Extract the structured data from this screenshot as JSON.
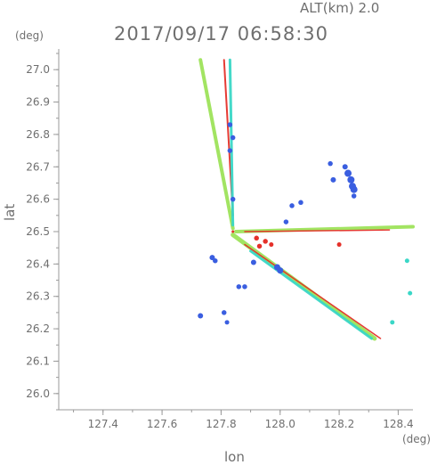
{
  "header": {
    "alt_label": "ALT(km) 2.0",
    "timestamp": "2017/09/17 06:58:30"
  },
  "colors": {
    "axis": "#9a9a9a",
    "text": "#6f6f6f",
    "blue": "#3a5ee0",
    "green": "#9ee35a",
    "cyan": "#3ad7c7",
    "red": "#e5312a",
    "yellow": "#e8ea3a",
    "teal": "#35c0d8"
  },
  "chart_data": {
    "type": "scatter",
    "title": "2017/09/17 06:58:30",
    "subtitle": "ALT(km) 2.0",
    "xlabel": "lon",
    "ylabel": "lat",
    "x_unit": "(deg)",
    "y_unit": "(deg)",
    "xlim": [
      127.25,
      128.45
    ],
    "ylim": [
      25.95,
      27.05
    ],
    "xticks": [
      127.4,
      127.6,
      127.8,
      128.0,
      128.2,
      128.4
    ],
    "yticks": [
      26.0,
      26.1,
      26.2,
      26.3,
      26.4,
      26.5,
      26.6,
      26.7,
      26.8,
      26.9,
      27.0
    ],
    "xtick_labels": [
      "127.4",
      "127.6",
      "127.8",
      "128.0",
      "128.2",
      "128.4"
    ],
    "ytick_labels": [
      "26.0",
      "26.1",
      "26.2",
      "26.3",
      "26.4",
      "26.5",
      "26.6",
      "26.7",
      "26.8",
      "26.9",
      "27.0"
    ],
    "grid": false,
    "radar_site": [
      127.84,
      26.5
    ],
    "beams": [
      {
        "color": "green",
        "from": [
          127.84,
          26.51
        ],
        "to": [
          127.73,
          27.03
        ],
        "width": 4
      },
      {
        "color": "red",
        "from": [
          127.84,
          26.55
        ],
        "to": [
          127.81,
          27.03
        ],
        "width": 2
      },
      {
        "color": "cyan",
        "from": [
          127.84,
          26.52
        ],
        "to": [
          127.83,
          27.03
        ],
        "width": 3
      },
      {
        "color": "green",
        "from": [
          127.85,
          26.5
        ],
        "to": [
          128.45,
          26.515
        ],
        "width": 4
      },
      {
        "color": "red",
        "from": [
          127.88,
          26.5
        ],
        "to": [
          128.37,
          26.505
        ],
        "width": 1.5
      },
      {
        "color": "green",
        "from": [
          127.84,
          26.49
        ],
        "to": [
          128.32,
          26.17
        ],
        "width": 5
      },
      {
        "color": "cyan",
        "from": [
          127.9,
          26.44
        ],
        "to": [
          128.31,
          26.17
        ],
        "width": 3
      },
      {
        "color": "red",
        "from": [
          127.88,
          26.46
        ],
        "to": [
          128.34,
          26.17
        ],
        "width": 1.5
      }
    ],
    "echoes": [
      {
        "color": "blue",
        "x": 128.23,
        "y": 26.68,
        "size": 1
      },
      {
        "color": "blue",
        "x": 128.24,
        "y": 26.66,
        "size": 1
      },
      {
        "color": "blue",
        "x": 128.245,
        "y": 26.64,
        "size": 1
      },
      {
        "color": "blue",
        "x": 128.25,
        "y": 26.63,
        "size": 1
      },
      {
        "color": "blue",
        "x": 128.22,
        "y": 26.7,
        "size": 0.6
      },
      {
        "color": "blue",
        "x": 128.18,
        "y": 26.66,
        "size": 0.6
      },
      {
        "color": "blue",
        "x": 128.17,
        "y": 26.71,
        "size": 0.5
      },
      {
        "color": "blue",
        "x": 128.25,
        "y": 26.61,
        "size": 0.5
      },
      {
        "color": "blue",
        "x": 128.07,
        "y": 26.59,
        "size": 0.5
      },
      {
        "color": "blue",
        "x": 128.04,
        "y": 26.58,
        "size": 0.5
      },
      {
        "color": "blue",
        "x": 128.02,
        "y": 26.53,
        "size": 0.5
      },
      {
        "color": "blue",
        "x": 127.83,
        "y": 26.83,
        "size": 0.5
      },
      {
        "color": "blue",
        "x": 127.84,
        "y": 26.79,
        "size": 0.5
      },
      {
        "color": "blue",
        "x": 127.83,
        "y": 26.75,
        "size": 0.5
      },
      {
        "color": "blue",
        "x": 127.84,
        "y": 26.6,
        "size": 0.5
      },
      {
        "color": "blue",
        "x": 127.77,
        "y": 26.42,
        "size": 0.6
      },
      {
        "color": "blue",
        "x": 127.78,
        "y": 26.41,
        "size": 0.5
      },
      {
        "color": "blue",
        "x": 127.91,
        "y": 26.405,
        "size": 0.6
      },
      {
        "color": "blue",
        "x": 127.99,
        "y": 26.39,
        "size": 0.8
      },
      {
        "color": "blue",
        "x": 128.0,
        "y": 26.38,
        "size": 0.8
      },
      {
        "color": "blue",
        "x": 127.86,
        "y": 26.33,
        "size": 0.5
      },
      {
        "color": "blue",
        "x": 127.88,
        "y": 26.33,
        "size": 0.5
      },
      {
        "color": "blue",
        "x": 127.81,
        "y": 26.25,
        "size": 0.5
      },
      {
        "color": "blue",
        "x": 127.73,
        "y": 26.24,
        "size": 0.6
      },
      {
        "color": "blue",
        "x": 127.82,
        "y": 26.22,
        "size": 0.4
      },
      {
        "color": "red",
        "x": 127.92,
        "y": 26.48,
        "size": 0.5
      },
      {
        "color": "red",
        "x": 127.95,
        "y": 26.47,
        "size": 0.5
      },
      {
        "color": "red",
        "x": 127.93,
        "y": 26.455,
        "size": 0.5
      },
      {
        "color": "red",
        "x": 127.97,
        "y": 26.46,
        "size": 0.4
      },
      {
        "color": "red",
        "x": 128.2,
        "y": 26.46,
        "size": 0.4
      },
      {
        "color": "cyan",
        "x": 128.43,
        "y": 26.41,
        "size": 0.4
      },
      {
        "color": "cyan",
        "x": 128.44,
        "y": 26.31,
        "size": 0.4
      },
      {
        "color": "cyan",
        "x": 128.38,
        "y": 26.22,
        "size": 0.4
      }
    ]
  }
}
